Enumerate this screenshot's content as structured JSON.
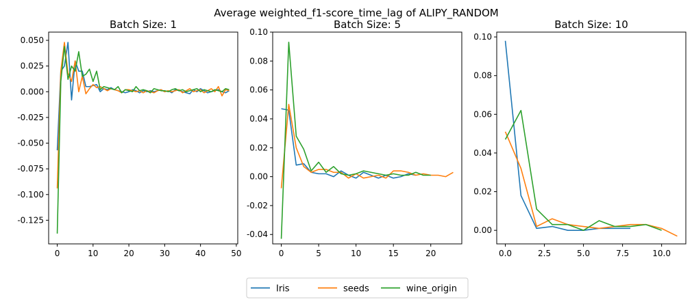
{
  "suptitle": "Average weighted_f1-score_time_lag of ALIPY_RANDOM",
  "colors": {
    "Iris": "#1f77b4",
    "seeds": "#ff7f0e",
    "wine_origin": "#2ca02c"
  },
  "legend": {
    "placement": "bottom-center",
    "entries": [
      "Iris",
      "seeds",
      "wine_origin"
    ]
  },
  "chart_data": [
    {
      "type": "line",
      "title": "Batch Size: 1",
      "xlabel": "",
      "ylabel": "",
      "xlim": [
        -2.4,
        50.4
      ],
      "ylim": [
        -0.148,
        0.058
      ],
      "xticks": [
        0,
        10,
        20,
        30,
        40,
        50
      ],
      "yticks": [
        -0.125,
        -0.1,
        -0.075,
        -0.05,
        -0.025,
        0.0,
        0.025,
        0.05
      ],
      "yfmt": 3,
      "grid": false,
      "series": [
        {
          "name": "Iris",
          "values": [
            -0.057,
            0.02,
            0.025,
            0.048,
            -0.008,
            0.03,
            0.02,
            0.02,
            0.005,
            0.005,
            0.006,
            0.007,
            0.0,
            0.003,
            0.002,
            0.004,
            0.002,
            0.001,
            0.0,
            -0.001,
            0.0,
            0.002,
            0.001,
            -0.001,
            0.001,
            0.0,
            0.001,
            0.0,
            0.001,
            0.002,
            0.0,
            0.001,
            -0.001,
            0.002,
            0.001,
            0.0,
            -0.001,
            -0.002,
            0.002,
            0.0,
            0.003,
            0.001,
            -0.001,
            0.0,
            0.001,
            0.002,
            0.0,
            -0.001,
            0.001
          ]
        },
        {
          "name": "seeds",
          "values": [
            -0.094,
            0.02,
            0.048,
            0.018,
            0.01,
            0.03,
            0.0,
            0.015,
            -0.002,
            0.003,
            0.007,
            0.004,
            0.005,
            0.003,
            0.001,
            0.003,
            0.002,
            0.001,
            -0.001,
            0.002,
            0.002,
            0.001,
            0.0,
            0.001,
            -0.001,
            0.001,
            0.0,
            -0.001,
            0.001,
            0.002,
            0.0,
            0.001,
            0.0,
            0.001,
            0.002,
            -0.001,
            0.001,
            0.003,
            0.0,
            0.001,
            0.002,
            -0.001,
            0.001,
            0.003,
            0.0,
            0.005,
            -0.004,
            0.002,
            0.001
          ]
        },
        {
          "name": "wine_origin",
          "values": [
            -0.138,
            0.01,
            0.044,
            0.012,
            0.025,
            0.02,
            0.039,
            0.015,
            0.017,
            0.022,
            0.01,
            0.02,
            0.002,
            0.005,
            0.004,
            0.003,
            0.002,
            0.005,
            -0.001,
            0.002,
            0.001,
            0.0,
            0.005,
            0.001,
            0.002,
            0.001,
            -0.001,
            0.003,
            0.002,
            0.001,
            0.001,
            0.0,
            0.002,
            0.003,
            0.001,
            0.002,
            0.0,
            0.001,
            0.002,
            0.003,
            0.0,
            0.002,
            0.001,
            0.0,
            0.002,
            0.001,
            0.0,
            0.003,
            0.002
          ]
        }
      ]
    },
    {
      "type": "line",
      "title": "Batch Size: 5",
      "xlabel": "",
      "ylabel": "",
      "xlim": [
        -1.15,
        24.15
      ],
      "ylim": [
        -0.0465,
        0.1
      ],
      "xticks": [
        0,
        5,
        10,
        15,
        20
      ],
      "yticks": [
        -0.04,
        -0.02,
        0.0,
        0.02,
        0.04,
        0.06,
        0.08,
        0.1
      ],
      "yfmt": 2,
      "grid": false,
      "series": [
        {
          "name": "Iris",
          "values": [
            0.047,
            0.046,
            0.008,
            0.009,
            0.003,
            0.002,
            0.002,
            0.0,
            0.004,
            0.001,
            -0.001,
            0.003,
            0.001,
            -0.001,
            0.001,
            -0.001,
            0.0,
            0.002,
            0.001
          ]
        },
        {
          "name": "seeds",
          "values": [
            -0.008,
            0.05,
            0.02,
            0.007,
            0.003,
            0.005,
            0.005,
            0.003,
            0.003,
            -0.001,
            0.002,
            -0.001,
            0.0,
            0.001,
            -0.001,
            0.004,
            0.004,
            0.003,
            0.001,
            0.002,
            0.001,
            0.001,
            0.0,
            0.003
          ]
        },
        {
          "name": "wine_origin",
          "values": [
            -0.043,
            0.093,
            0.028,
            0.019,
            0.004,
            0.01,
            0.003,
            0.007,
            0.002,
            0.001,
            0.002,
            0.004,
            0.003,
            0.002,
            0.001,
            0.002,
            0.001,
            0.001,
            0.003,
            0.001,
            0.001
          ]
        }
      ]
    },
    {
      "type": "line",
      "title": "Batch Size: 10",
      "xlabel": "",
      "ylabel": "",
      "xlim": [
        -0.55,
        11.55
      ],
      "ylim": [
        -0.007,
        0.1025
      ],
      "xticks": [
        0.0,
        2.5,
        5.0,
        7.5,
        10.0
      ],
      "xfmt": 1,
      "yticks": [
        0.0,
        0.02,
        0.04,
        0.06,
        0.08,
        0.1
      ],
      "yfmt": 2,
      "grid": false,
      "series": [
        {
          "name": "Iris",
          "values": [
            0.098,
            0.018,
            0.001,
            0.002,
            0.0,
            0.0,
            0.001,
            0.001,
            0.001
          ]
        },
        {
          "name": "seeds",
          "values": [
            0.051,
            0.032,
            0.002,
            0.006,
            0.003,
            0.002,
            0.001,
            0.002,
            0.003,
            0.003,
            0.001,
            -0.003
          ]
        },
        {
          "name": "wine_origin",
          "values": [
            0.047,
            0.062,
            0.011,
            0.003,
            0.003,
            0.0,
            0.005,
            0.002,
            0.002,
            0.003,
            0.0
          ]
        }
      ]
    }
  ]
}
